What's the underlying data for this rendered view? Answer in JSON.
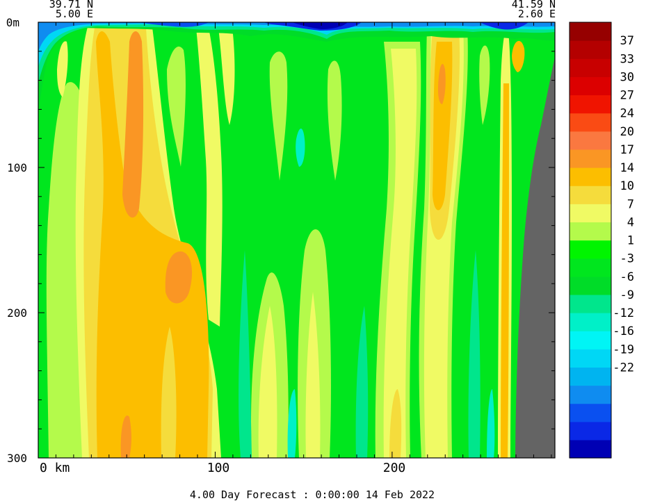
{
  "chart_data": {
    "type": "heatmap",
    "header": {
      "left_lat": "39.71 N",
      "left_lon": "5.00 E",
      "right_lat": "41.59 N",
      "right_lon": "2.60 E"
    },
    "x_axis": {
      "unit_label": "km",
      "range": [
        0,
        292
      ],
      "ticks": [
        0,
        100,
        200
      ],
      "tick_labels": [
        "0 km",
        "100",
        "200"
      ],
      "minor_step": 10
    },
    "y_axis": {
      "range": [
        0,
        300
      ],
      "reversed": true,
      "ticks": [
        0,
        100,
        200,
        300
      ],
      "tick_labels": [
        "0m",
        "100",
        "200",
        "300"
      ],
      "minor_step": 20
    },
    "colorbar": {
      "levels": [
        -24,
        -22,
        -19,
        -16,
        -12,
        -9,
        -6,
        -3,
        1,
        4,
        7,
        10,
        14,
        17,
        20,
        24,
        27,
        30,
        33,
        37,
        40
      ],
      "labels": [
        "37",
        "33",
        "30",
        "27",
        "24",
        "20",
        "17",
        "14",
        "10",
        "7",
        "4",
        "1",
        "-3",
        "-6",
        "-9",
        "-12",
        "-16",
        "-19",
        "-22"
      ],
      "colors": [
        "#0000b4",
        "#0a28e6",
        "#0a50f0",
        "#0f8cf0",
        "#00b4f0",
        "#00d7f5",
        "#00f5f5",
        "#00f0c8",
        "#00e68c",
        "#00dc28",
        "#00e61e",
        "#00f500",
        "#b4fa4b",
        "#f0fa64",
        "#f5dc3c",
        "#fcbe00",
        "#fa9624",
        "#fa7840",
        "#fa4b14",
        "#f01400",
        "#dc0000",
        "#c80000",
        "#b40000",
        "#960000"
      ]
    },
    "land_color": "#646464",
    "footer": "4.00 Day Forecast :  0:00:00  14 Feb 2022"
  }
}
